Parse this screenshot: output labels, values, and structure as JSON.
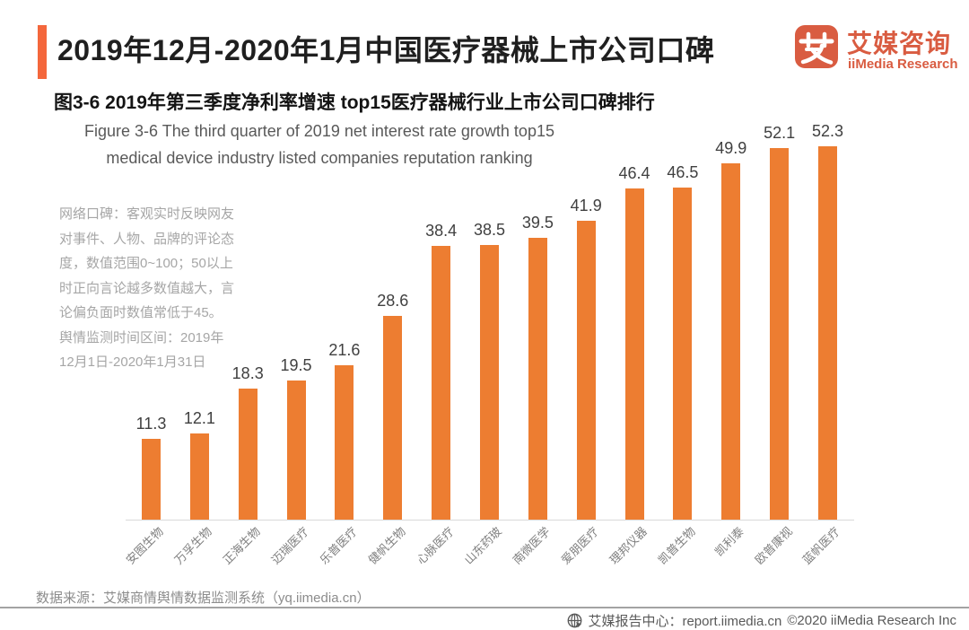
{
  "header": {
    "title": "2019年12月-2020年1月中国医疗器械上市公司口碑",
    "logo_cn": "艾媒咨询",
    "logo_en": "iiMedia Research"
  },
  "subtitle": {
    "cn": "图3-6 2019年第三季度净利率增速 top15医疗器械行业上市公司口碑排行",
    "en_line1": "Figure 3-6 The third quarter of 2019 net interest rate growth top15",
    "en_line2": "medical device industry listed companies reputation ranking"
  },
  "note_lines": [
    "网络口碑：客观实时反映网友",
    "对事件、人物、品牌的评论态",
    "度，数值范围0~100；50以上",
    "时正向言论越多数值越大，言",
    "论偏负面时数值常低于45。",
    "舆情监测时间区间：2019年",
    "12月1日-2020年1月31日"
  ],
  "chart_data": {
    "type": "bar",
    "title": "图3-6 2019年第三季度净利率增速 top15医疗器械行业上市公司口碑排行",
    "categories": [
      "安图生物",
      "万孚生物",
      "正海生物",
      "迈瑞医疗",
      "乐普医疗",
      "健帆生物",
      "心脉医疗",
      "山东药玻",
      "南微医学",
      "爱朋医疗",
      "理邦仪器",
      "凯普生物",
      "凯利泰",
      "欧普康视",
      "蓝帆医疗"
    ],
    "values": [
      11.3,
      12.1,
      18.3,
      19.5,
      21.6,
      28.6,
      38.4,
      38.5,
      39.5,
      41.9,
      46.4,
      46.5,
      49.9,
      52.1,
      52.3
    ],
    "xlabel": "",
    "ylabel": "",
    "ylim": [
      0,
      55
    ],
    "grid": false,
    "legend": false,
    "bar_color": "#ED7D31"
  },
  "footer": {
    "source": "数据来源：艾媒商情舆情数据监测系统（yq.iimedia.cn）",
    "report": "艾媒报告中心：report.iimedia.cn",
    "copyright": "©2020  iiMedia Research Inc"
  },
  "colors": {
    "accent": "#F4673C",
    "bar": "#ED7D31",
    "logo": "#D95C41"
  }
}
